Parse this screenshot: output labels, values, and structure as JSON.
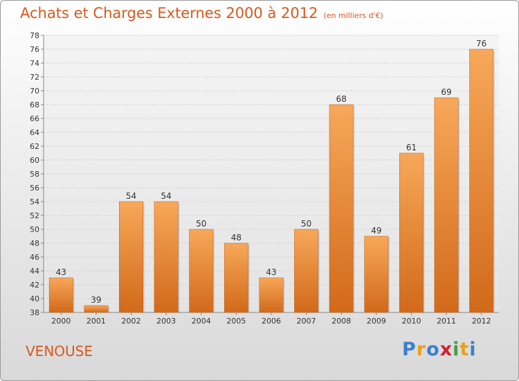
{
  "header": {
    "title": "Achats et Charges Externes 2000 à 2012",
    "unit": "(en milliers d'€)"
  },
  "footer": {
    "town": "VENOUSE",
    "brand_letters": [
      "P",
      "r",
      "o",
      "x",
      "i",
      "t",
      "i"
    ],
    "brand_colors": [
      "#3a7fd0",
      "#e8a020",
      "#3a7fd0",
      "#d02030",
      "#40a040",
      "#e8a020",
      "#3a7fd0"
    ]
  },
  "chart_data": {
    "type": "bar",
    "categories": [
      "2000",
      "2001",
      "2002",
      "2003",
      "2004",
      "2005",
      "2006",
      "2007",
      "2008",
      "2009",
      "2010",
      "2011",
      "2012"
    ],
    "values": [
      43,
      39,
      54,
      54,
      50,
      48,
      43,
      50,
      68,
      49,
      61,
      69,
      76
    ],
    "ylim": [
      38,
      78
    ],
    "yticks": [
      38,
      40,
      42,
      44,
      46,
      48,
      50,
      52,
      54,
      56,
      58,
      60,
      62,
      64,
      66,
      68,
      70,
      72,
      74,
      76,
      78
    ],
    "grid": true,
    "bar_color_top": "#f7a85a",
    "bar_color_bottom": "#d2691a"
  }
}
